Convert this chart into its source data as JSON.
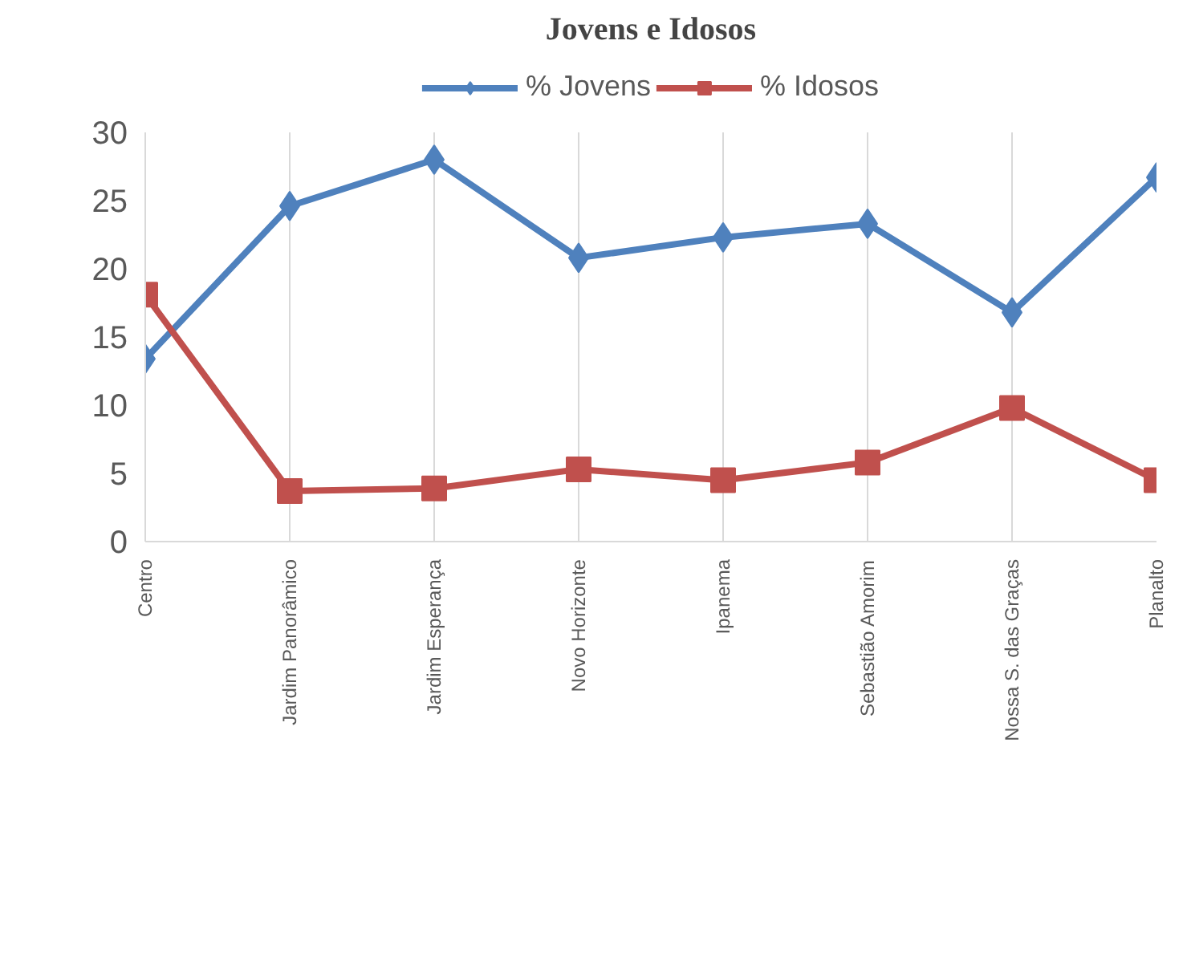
{
  "chart_data": {
    "type": "line",
    "title": "Jovens e Idosos",
    "categories": [
      "Centro",
      "Jardim Panorâmico",
      "Jardim Esperança",
      "Novo Horizonte",
      "Ipanema",
      "Sebastião Amorim",
      "Nossa S. das Graças",
      "Planalto"
    ],
    "series": [
      {
        "name": "% Jovens",
        "color": "#4f81bd",
        "marker": "diamond",
        "values": [
          13.4,
          24.6,
          28.0,
          20.8,
          22.3,
          23.3,
          16.8,
          26.7
        ]
      },
      {
        "name": "% Idosos",
        "color": "#c0504d",
        "marker": "square",
        "values": [
          18.1,
          3.7,
          3.9,
          5.3,
          4.5,
          5.8,
          9.8,
          4.5
        ]
      }
    ],
    "ylim": [
      0,
      30
    ],
    "yticks": [
      0,
      5,
      10,
      15,
      20,
      25,
      30
    ],
    "grid": "x",
    "legend": "top"
  }
}
